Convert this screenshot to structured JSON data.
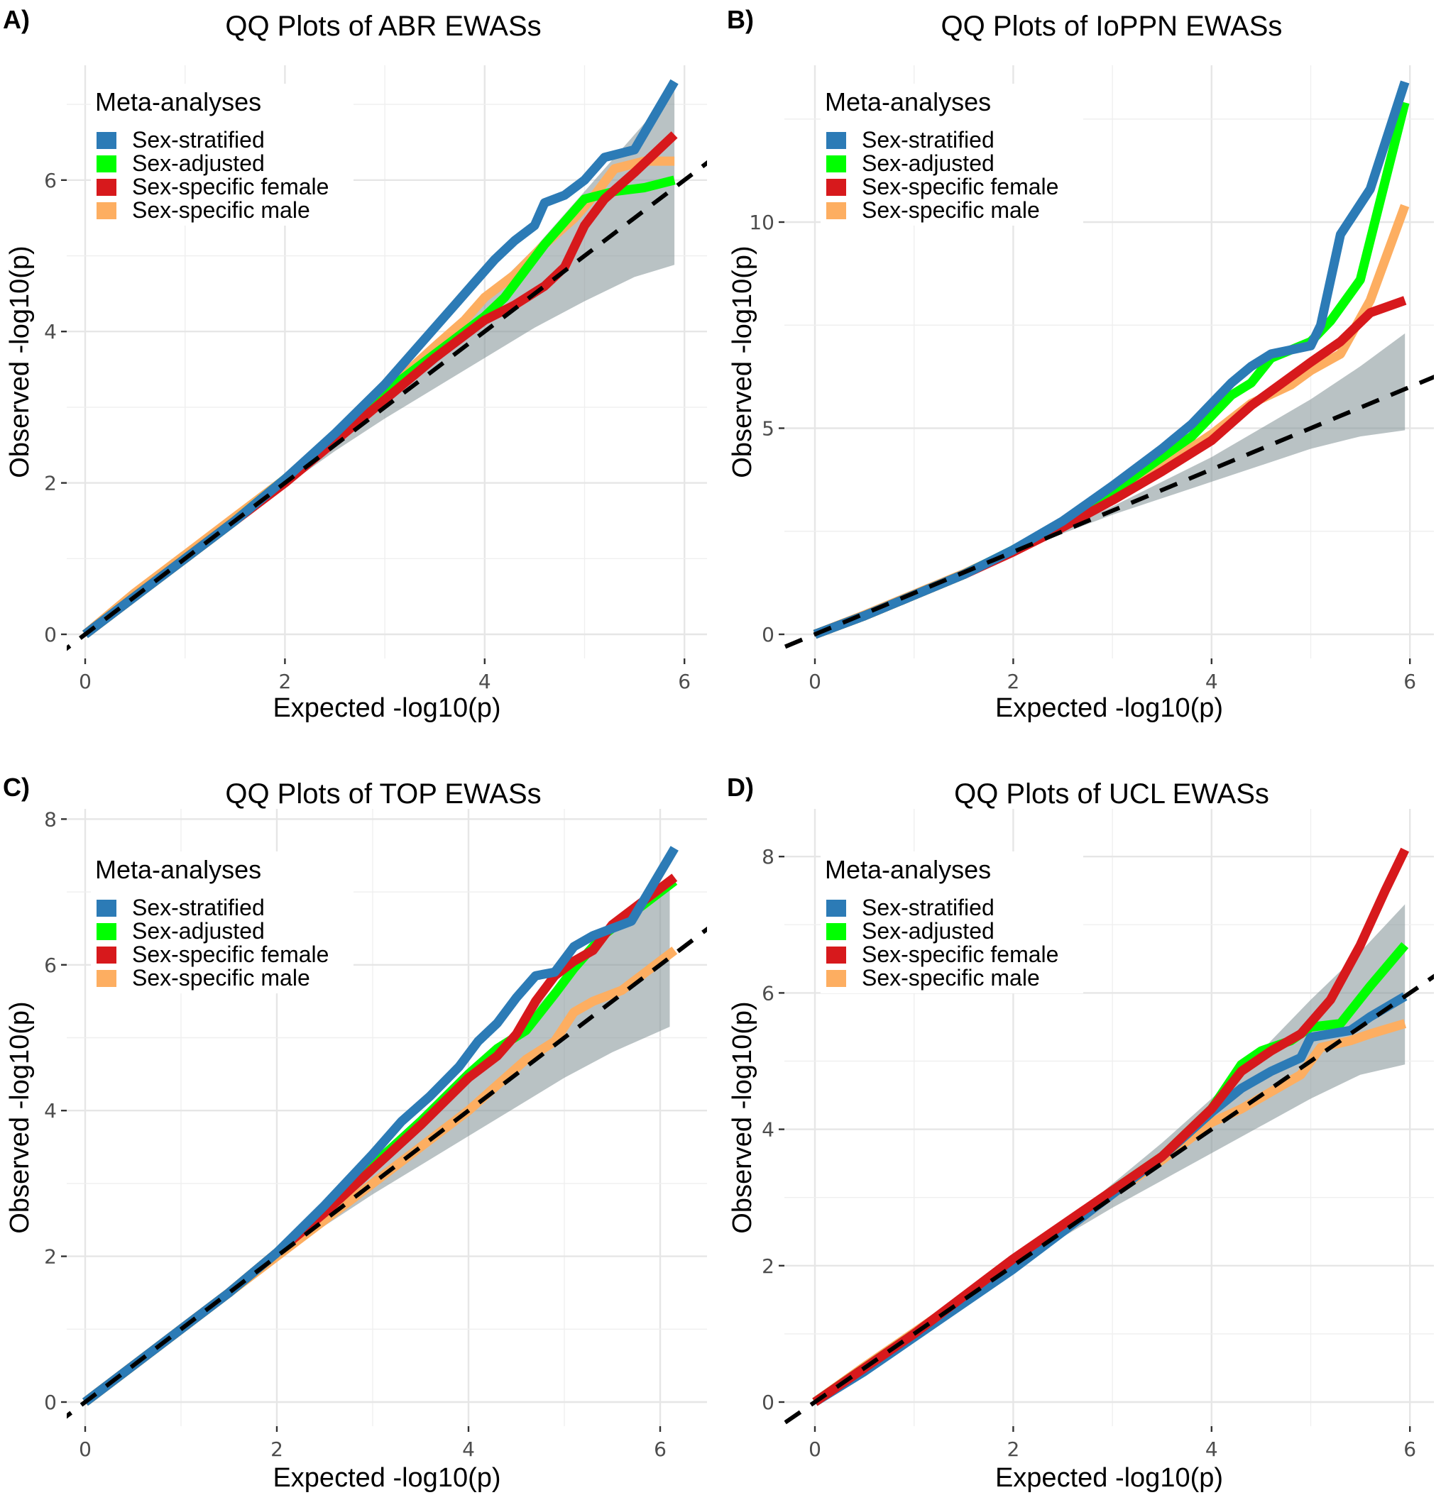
{
  "figure": {
    "legend_title": "Meta-analyses",
    "xlabel": "Expected -log10(p)",
    "ylabel": "Observed -log10(p)"
  },
  "chart_data": [
    {
      "type": "line",
      "panel_label": "A)",
      "title": "QQ Plots of ABR EWASs",
      "xlabel": "Expected -log10(p)",
      "ylabel": "Observed -log10(p)",
      "xlim": [
        -0.3,
        6.2
      ],
      "ylim": [
        -0.3,
        7.6
      ],
      "xticks": [
        0,
        2,
        4,
        6
      ],
      "yticks": [
        0,
        2,
        4,
        6
      ],
      "grid": true,
      "legend": {
        "title": "Meta-analyses",
        "position": "top-left"
      },
      "reference_line": {
        "style": "dashed",
        "color": "#000000",
        "slope": 1,
        "intercept": 0
      },
      "confidence_band": {
        "x": [
          2.0,
          2.5,
          3.0,
          3.5,
          4.0,
          4.5,
          5.0,
          5.5,
          5.9
        ],
        "lower": [
          1.95,
          2.42,
          2.85,
          3.25,
          3.65,
          4.05,
          4.4,
          4.72,
          4.88
        ],
        "upper": [
          2.05,
          2.6,
          3.2,
          3.8,
          4.45,
          5.1,
          5.85,
          6.6,
          7.2
        ]
      },
      "series": [
        {
          "name": "Sex-stratified",
          "color": "#2c7bb6",
          "x": [
            0,
            0.5,
            1.0,
            1.5,
            2.0,
            2.5,
            3.0,
            3.2,
            3.5,
            3.7,
            3.9,
            4.1,
            4.3,
            4.5,
            4.6,
            4.8,
            5.0,
            5.2,
            5.5,
            5.9
          ],
          "y": [
            0,
            0.5,
            1.0,
            1.5,
            2.05,
            2.65,
            3.3,
            3.6,
            4.05,
            4.35,
            4.65,
            4.95,
            5.2,
            5.4,
            5.7,
            5.8,
            6.0,
            6.3,
            6.4,
            7.3
          ]
        },
        {
          "name": "Sex-adjusted",
          "color": "#00ff00",
          "x": [
            0,
            0.5,
            1.0,
            1.5,
            2.0,
            2.5,
            3.0,
            3.5,
            3.8,
            4.0,
            4.2,
            4.4,
            4.6,
            4.8,
            5.0,
            5.3,
            5.6,
            5.9
          ],
          "y": [
            0,
            0.5,
            1.0,
            1.5,
            2.05,
            2.6,
            3.2,
            3.7,
            4.0,
            4.2,
            4.45,
            4.8,
            5.15,
            5.45,
            5.75,
            5.85,
            5.9,
            6.0
          ]
        },
        {
          "name": "Sex-specific female",
          "color": "#d7191c",
          "x": [
            0,
            0.5,
            1.0,
            1.5,
            2.0,
            2.5,
            3.0,
            3.5,
            4.0,
            4.3,
            4.6,
            4.8,
            5.0,
            5.2,
            5.5,
            5.9
          ],
          "y": [
            0,
            0.5,
            1.0,
            1.5,
            2.0,
            2.55,
            3.1,
            3.65,
            4.15,
            4.35,
            4.6,
            4.85,
            5.4,
            5.75,
            6.1,
            6.6
          ]
        },
        {
          "name": "Sex-specific male",
          "color": "#fdae61",
          "x": [
            0,
            0.5,
            1.0,
            1.5,
            2.0,
            2.5,
            3.0,
            3.5,
            3.8,
            4.0,
            4.3,
            4.6,
            4.9,
            5.1,
            5.3,
            5.6,
            5.9
          ],
          "y": [
            0,
            0.55,
            1.05,
            1.55,
            2.05,
            2.6,
            3.2,
            3.8,
            4.15,
            4.45,
            4.75,
            5.15,
            5.5,
            5.8,
            6.15,
            6.25,
            6.25
          ]
        }
      ]
    },
    {
      "type": "line",
      "panel_label": "B)",
      "title": "QQ Plots of IoPPN EWASs",
      "xlabel": "Expected -log10(p)",
      "ylabel": "Observed -log10(p)",
      "xlim": [
        -0.3,
        6.2
      ],
      "ylim": [
        -0.5,
        13.5
      ],
      "xticks": [
        0,
        2,
        4,
        6
      ],
      "yticks": [
        0,
        5,
        10
      ],
      "grid": true,
      "legend": {
        "title": "Meta-analyses",
        "position": "top-left"
      },
      "reference_line": {
        "style": "dashed",
        "color": "#000000",
        "slope": 1,
        "intercept": 0
      },
      "confidence_band": {
        "x": [
          2.0,
          2.5,
          3.0,
          3.5,
          4.0,
          4.5,
          5.0,
          5.5,
          5.95
        ],
        "lower": [
          1.98,
          2.45,
          2.9,
          3.3,
          3.7,
          4.1,
          4.5,
          4.8,
          4.95
        ],
        "upper": [
          2.02,
          2.55,
          3.1,
          3.7,
          4.3,
          5.0,
          5.7,
          6.5,
          7.3
        ]
      },
      "series": [
        {
          "name": "Sex-stratified",
          "color": "#2c7bb6",
          "x": [
            0,
            0.5,
            1.0,
            1.5,
            2.0,
            2.5,
            3.0,
            3.5,
            3.8,
            4.0,
            4.2,
            4.4,
            4.6,
            4.8,
            5.0,
            5.1,
            5.3,
            5.6,
            5.95
          ],
          "y": [
            0,
            0.45,
            0.95,
            1.45,
            2.05,
            2.75,
            3.6,
            4.5,
            5.1,
            5.6,
            6.1,
            6.5,
            6.8,
            6.9,
            7.0,
            7.5,
            9.7,
            10.8,
            13.4
          ]
        },
        {
          "name": "Sex-adjusted",
          "color": "#00ff00",
          "x": [
            0,
            0.5,
            1.0,
            1.5,
            2.0,
            2.5,
            3.0,
            3.5,
            3.8,
            4.0,
            4.2,
            4.4,
            4.6,
            4.8,
            5.0,
            5.2,
            5.5,
            5.95
          ],
          "y": [
            0,
            0.45,
            0.95,
            1.45,
            2.05,
            2.7,
            3.45,
            4.3,
            4.8,
            5.3,
            5.8,
            6.1,
            6.7,
            6.9,
            7.1,
            7.6,
            8.6,
            12.9
          ]
        },
        {
          "name": "Sex-specific female",
          "color": "#d7191c",
          "x": [
            0,
            0.5,
            1.0,
            1.5,
            2.0,
            2.5,
            3.0,
            3.5,
            4.0,
            4.4,
            4.8,
            5.0,
            5.3,
            5.6,
            5.95
          ],
          "y": [
            0,
            0.45,
            0.95,
            1.45,
            2.0,
            2.6,
            3.25,
            3.95,
            4.7,
            5.55,
            6.25,
            6.6,
            7.1,
            7.8,
            8.1
          ]
        },
        {
          "name": "Sex-specific male",
          "color": "#fdae61",
          "x": [
            0,
            0.5,
            1.0,
            1.5,
            2.0,
            2.5,
            3.0,
            3.5,
            4.0,
            4.4,
            4.8,
            5.0,
            5.3,
            5.6,
            5.95
          ],
          "y": [
            0,
            0.47,
            0.97,
            1.47,
            2.02,
            2.65,
            3.3,
            4.05,
            4.85,
            5.6,
            6.05,
            6.4,
            6.8,
            8.1,
            10.4
          ]
        }
      ]
    },
    {
      "type": "line",
      "panel_label": "C)",
      "title": "QQ Plots of TOP EWASs",
      "xlabel": "Expected -log10(p)",
      "ylabel": "Observed -log10(p)",
      "xlim": [
        -0.3,
        6.3
      ],
      "ylim": [
        -0.3,
        8.2
      ],
      "xticks": [
        0,
        2,
        4,
        6
      ],
      "yticks": [
        0,
        2,
        4,
        6,
        8
      ],
      "grid": true,
      "legend": {
        "title": "Meta-analyses",
        "position": "top-left"
      },
      "reference_line": {
        "style": "dashed",
        "color": "#000000",
        "slope": 1,
        "intercept": 0
      },
      "confidence_band": {
        "x": [
          2.0,
          2.5,
          3.0,
          3.5,
          4.0,
          4.5,
          5.0,
          5.5,
          6.1
        ],
        "lower": [
          1.95,
          2.42,
          2.85,
          3.25,
          3.65,
          4.05,
          4.45,
          4.8,
          5.15
        ],
        "upper": [
          2.05,
          2.6,
          3.2,
          3.8,
          4.45,
          5.1,
          5.85,
          6.55,
          7.1
        ]
      },
      "series": [
        {
          "name": "Sex-stratified",
          "color": "#2c7bb6",
          "x": [
            0,
            0.5,
            1.0,
            1.5,
            2.0,
            2.5,
            3.0,
            3.3,
            3.6,
            3.9,
            4.1,
            4.3,
            4.5,
            4.7,
            4.9,
            5.1,
            5.3,
            5.7,
            6.15
          ],
          "y": [
            0,
            0.5,
            1.0,
            1.5,
            2.05,
            2.7,
            3.4,
            3.85,
            4.2,
            4.6,
            4.95,
            5.2,
            5.55,
            5.85,
            5.9,
            6.25,
            6.4,
            6.6,
            7.6
          ]
        },
        {
          "name": "Sex-adjusted",
          "color": "#00ff00",
          "x": [
            0,
            0.5,
            1.0,
            1.5,
            2.0,
            2.5,
            3.0,
            3.5,
            4.0,
            4.3,
            4.6,
            4.9,
            5.1,
            5.4,
            5.7,
            6.15
          ],
          "y": [
            0,
            0.5,
            1.0,
            1.5,
            2.05,
            2.65,
            3.25,
            3.85,
            4.5,
            4.85,
            5.1,
            5.6,
            5.95,
            6.4,
            6.7,
            7.15
          ]
        },
        {
          "name": "Sex-specific female",
          "color": "#d7191c",
          "x": [
            0,
            0.5,
            1.0,
            1.5,
            2.0,
            2.5,
            3.0,
            3.5,
            4.0,
            4.3,
            4.5,
            4.7,
            4.9,
            5.1,
            5.3,
            5.5,
            5.8,
            6.15
          ],
          "y": [
            0,
            0.5,
            1.0,
            1.5,
            2.05,
            2.6,
            3.2,
            3.8,
            4.45,
            4.75,
            5.05,
            5.5,
            5.85,
            6.05,
            6.2,
            6.55,
            6.85,
            7.2
          ]
        },
        {
          "name": "Sex-specific male",
          "color": "#fdae61",
          "x": [
            0,
            0.5,
            1.0,
            1.5,
            2.0,
            2.5,
            3.0,
            3.5,
            4.0,
            4.3,
            4.6,
            4.9,
            5.1,
            5.3,
            5.6,
            6.15
          ],
          "y": [
            0,
            0.5,
            1.0,
            1.5,
            2.0,
            2.5,
            3.0,
            3.5,
            4.0,
            4.35,
            4.7,
            4.95,
            5.35,
            5.5,
            5.65,
            6.2
          ]
        }
      ]
    },
    {
      "type": "line",
      "panel_label": "D)",
      "title": "QQ Plots of UCL EWASs",
      "xlabel": "Expected -log10(p)",
      "ylabel": "Observed -log10(p)",
      "xlim": [
        -0.3,
        6.2
      ],
      "ylim": [
        -0.3,
        8.6
      ],
      "xticks": [
        0,
        2,
        4,
        6
      ],
      "yticks": [
        0,
        2,
        4,
        6,
        8
      ],
      "grid": true,
      "legend": {
        "title": "Meta-analyses",
        "position": "top-left"
      },
      "reference_line": {
        "style": "dashed",
        "color": "#000000",
        "slope": 1,
        "intercept": 0
      },
      "confidence_band": {
        "x": [
          2.0,
          2.5,
          3.0,
          3.5,
          4.0,
          4.5,
          5.0,
          5.5,
          5.95
        ],
        "lower": [
          1.95,
          2.42,
          2.85,
          3.25,
          3.65,
          4.05,
          4.45,
          4.8,
          4.95
        ],
        "upper": [
          2.05,
          2.6,
          3.2,
          3.8,
          4.45,
          5.15,
          5.9,
          6.6,
          7.3
        ]
      },
      "series": [
        {
          "name": "Sex-stratified",
          "color": "#2c7bb6",
          "x": [
            0,
            0.5,
            1.0,
            1.5,
            2.0,
            2.5,
            3.0,
            3.5,
            4.0,
            4.3,
            4.6,
            4.9,
            5.0,
            5.4,
            5.6,
            5.95
          ],
          "y": [
            0,
            0.45,
            0.95,
            1.45,
            1.95,
            2.5,
            3.05,
            3.6,
            4.25,
            4.6,
            4.85,
            5.05,
            5.35,
            5.45,
            5.65,
            5.95
          ]
        },
        {
          "name": "Sex-adjusted",
          "color": "#00ff00",
          "x": [
            0,
            0.5,
            1.0,
            1.5,
            2.0,
            2.5,
            3.0,
            3.5,
            4.0,
            4.3,
            4.5,
            4.8,
            5.0,
            5.3,
            5.6,
            5.95
          ],
          "y": [
            0,
            0.5,
            1.0,
            1.5,
            2.05,
            2.55,
            3.1,
            3.6,
            4.3,
            4.95,
            5.15,
            5.3,
            5.5,
            5.55,
            6.1,
            6.7
          ]
        },
        {
          "name": "Sex-specific female",
          "color": "#d7191c",
          "x": [
            0,
            0.5,
            1.0,
            1.5,
            2.0,
            2.5,
            3.0,
            3.5,
            4.0,
            4.3,
            4.6,
            4.9,
            5.2,
            5.5,
            5.75,
            5.95
          ],
          "y": [
            0,
            0.5,
            1.0,
            1.55,
            2.1,
            2.6,
            3.1,
            3.6,
            4.3,
            4.85,
            5.15,
            5.4,
            5.9,
            6.7,
            7.5,
            8.1
          ]
        },
        {
          "name": "Sex-specific male",
          "color": "#fdae61",
          "x": [
            0,
            0.5,
            1.0,
            1.5,
            2.0,
            2.5,
            3.0,
            3.5,
            4.0,
            4.3,
            4.6,
            4.9,
            5.1,
            5.4,
            5.6,
            5.95
          ],
          "y": [
            0,
            0.52,
            1.02,
            1.52,
            2.05,
            2.55,
            3.05,
            3.55,
            4.1,
            4.3,
            4.55,
            4.8,
            5.2,
            5.3,
            5.4,
            5.55
          ]
        }
      ]
    }
  ]
}
